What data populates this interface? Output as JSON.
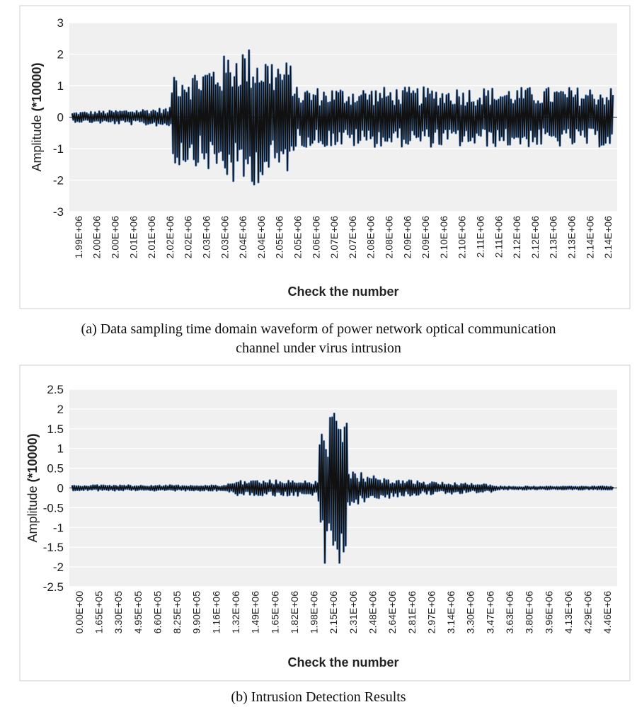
{
  "chart_data": [
    {
      "type": "line",
      "ylabel_main": "Amplitude ",
      "ylabel_bold": "(*10000)",
      "xlabel": "Check the number",
      "ylim": [
        -3,
        3
      ],
      "yticks": [
        "3",
        "2",
        "1",
        "0",
        "-1",
        "-2",
        "-3"
      ],
      "ytick_values": [
        3,
        2,
        1,
        0,
        -1,
        -2,
        -3
      ],
      "categories": [
        "1.99E+06",
        "2.00E+06",
        "2.00E+06",
        "2.01E+06",
        "2.01E+06",
        "2.02E+06",
        "2.02E+06",
        "2.03E+06",
        "2.03E+06",
        "2.04E+06",
        "2.04E+06",
        "2.05E+06",
        "2.05E+06",
        "2.06E+06",
        "2.07E+06",
        "2.07E+06",
        "2.08E+06",
        "2.08E+06",
        "2.09E+06",
        "2.09E+06",
        "2.10E+06",
        "2.10E+06",
        "2.11E+06",
        "2.11E+06",
        "2.12E+06",
        "2.12E+06",
        "2.13E+06",
        "2.13E+06",
        "2.14E+06",
        "2.14E+06"
      ],
      "envelope": [
        {
          "x": 0.0,
          "amp": 0.15
        },
        {
          "x": 5.3,
          "amp": 0.3
        },
        {
          "x": 5.35,
          "amp": 1.6
        },
        {
          "x": 6.5,
          "amp": 1.5
        },
        {
          "x": 8.0,
          "amp": 1.9
        },
        {
          "x": 9.0,
          "amp": 2.35
        },
        {
          "x": 10.0,
          "amp": 2.1
        },
        {
          "x": 11.9,
          "amp": 1.7
        },
        {
          "x": 11.95,
          "amp": 0.95
        },
        {
          "x": 29.0,
          "amp": 0.95
        }
      ],
      "peaks": [
        2.45,
        -2.2
      ],
      "caption_line1": "(a) Data sampling time domain waveform of power network optical communication",
      "caption_line2": "channel under virus intrusion"
    },
    {
      "type": "line",
      "ylabel_main": "Amplitude ",
      "ylabel_bold": "(*10000)",
      "xlabel": "Check the number",
      "ylim": [
        -2.5,
        2.5
      ],
      "yticks": [
        "2.5",
        "2",
        "1.5",
        "1",
        "0.5",
        "0",
        "-0.5",
        "-1",
        "-1.5",
        "-2",
        "-2.5"
      ],
      "ytick_values": [
        2.5,
        2,
        1.5,
        1,
        0.5,
        0,
        -0.5,
        -1,
        -1.5,
        -2,
        -2.5
      ],
      "categories": [
        "0.00E+00",
        "1.65E+05",
        "3.30E+05",
        "4.95E+05",
        "6.60E+05",
        "8.25E+05",
        "9.90E+05",
        "1.16E+06",
        "1.32E+06",
        "1.49E+06",
        "1.65E+06",
        "1.82E+06",
        "1.98E+06",
        "2.15E+06",
        "2.31E+06",
        "2.48E+06",
        "2.64E+06",
        "2.81E+06",
        "2.97E+06",
        "3.14E+06",
        "3.30E+06",
        "3.47E+06",
        "3.63E+06",
        "3.80E+06",
        "3.96E+06",
        "4.13E+06",
        "4.29E+06",
        "4.46E+06"
      ],
      "envelope": [
        {
          "x": 0.0,
          "amp": 0.07
        },
        {
          "x": 7.6,
          "amp": 0.07
        },
        {
          "x": 8.3,
          "amp": 0.2
        },
        {
          "x": 12.3,
          "amp": 0.2
        },
        {
          "x": 12.35,
          "amp": 1.9
        },
        {
          "x": 13.7,
          "amp": 1.9
        },
        {
          "x": 13.75,
          "amp": 0.45
        },
        {
          "x": 16.5,
          "amp": 0.2
        },
        {
          "x": 21.0,
          "amp": 0.1
        },
        {
          "x": 21.2,
          "amp": 0.04
        },
        {
          "x": 27.0,
          "amp": 0.04
        }
      ],
      "peaks": [
        1.97,
        -1.93
      ],
      "caption_line1": "(b) Intrusion Detection Results"
    }
  ]
}
